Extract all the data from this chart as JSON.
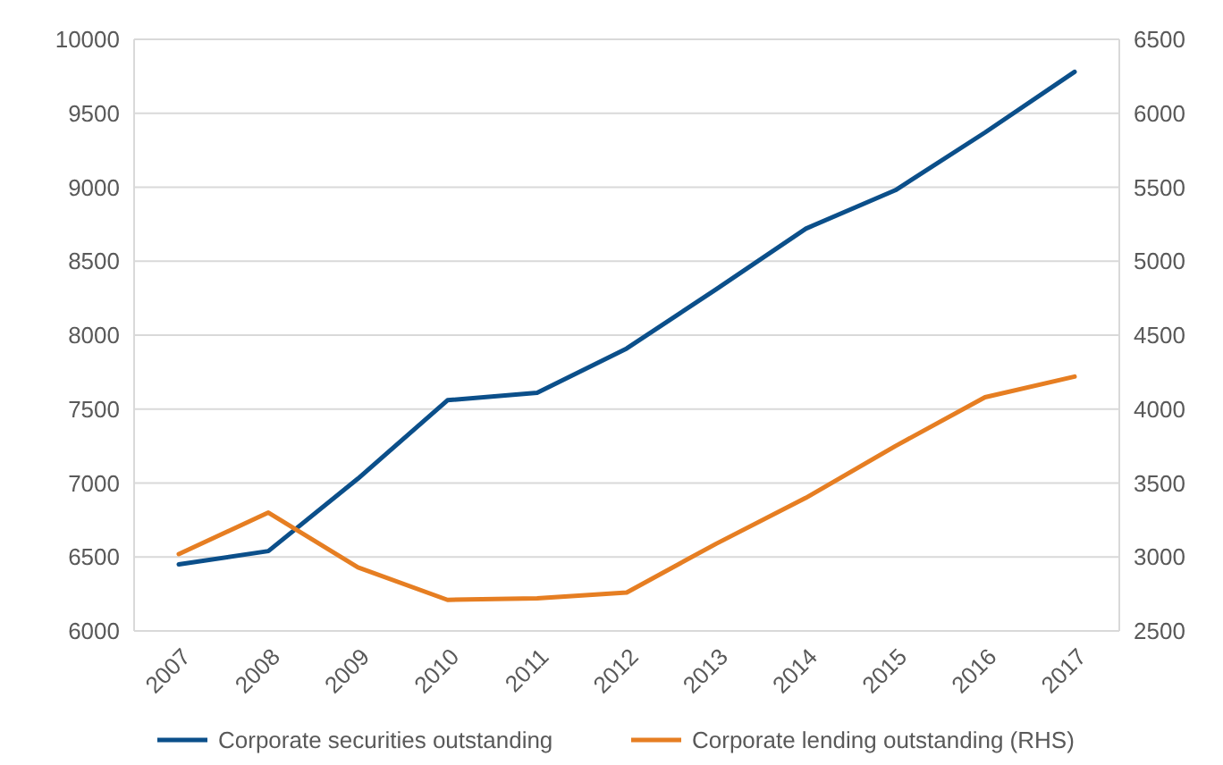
{
  "chart_data": {
    "type": "line",
    "categories": [
      "2007",
      "2008",
      "2009",
      "2010",
      "2011",
      "2012",
      "2013",
      "2014",
      "2015",
      "2016",
      "2017"
    ],
    "series": [
      {
        "name": "Corporate securities outstanding",
        "color": "#0b4f8a",
        "values": [
          6450,
          6540,
          7030,
          7560,
          7610,
          7910,
          8310,
          8720,
          8980,
          9370,
          9780
        ]
      },
      {
        "name": "Corporate lending outstanding (RHS)",
        "color": "#e67e22",
        "axis": "y2",
        "values": [
          3020,
          3300,
          2930,
          2710,
          2720,
          2760,
          3090,
          3400,
          3750,
          4080,
          4220
        ]
      }
    ],
    "ylim": [
      6000,
      10000
    ],
    "yticks": [
      6000,
      6500,
      7000,
      7500,
      8000,
      8500,
      9000,
      9500,
      10000
    ],
    "y2lim": [
      2500,
      6500
    ],
    "y2ticks": [
      2500,
      3000,
      3500,
      4000,
      4500,
      5000,
      5500,
      6000,
      6500
    ],
    "grid": "y",
    "legend": "bottom",
    "marker": "none",
    "line_style": "solid"
  }
}
